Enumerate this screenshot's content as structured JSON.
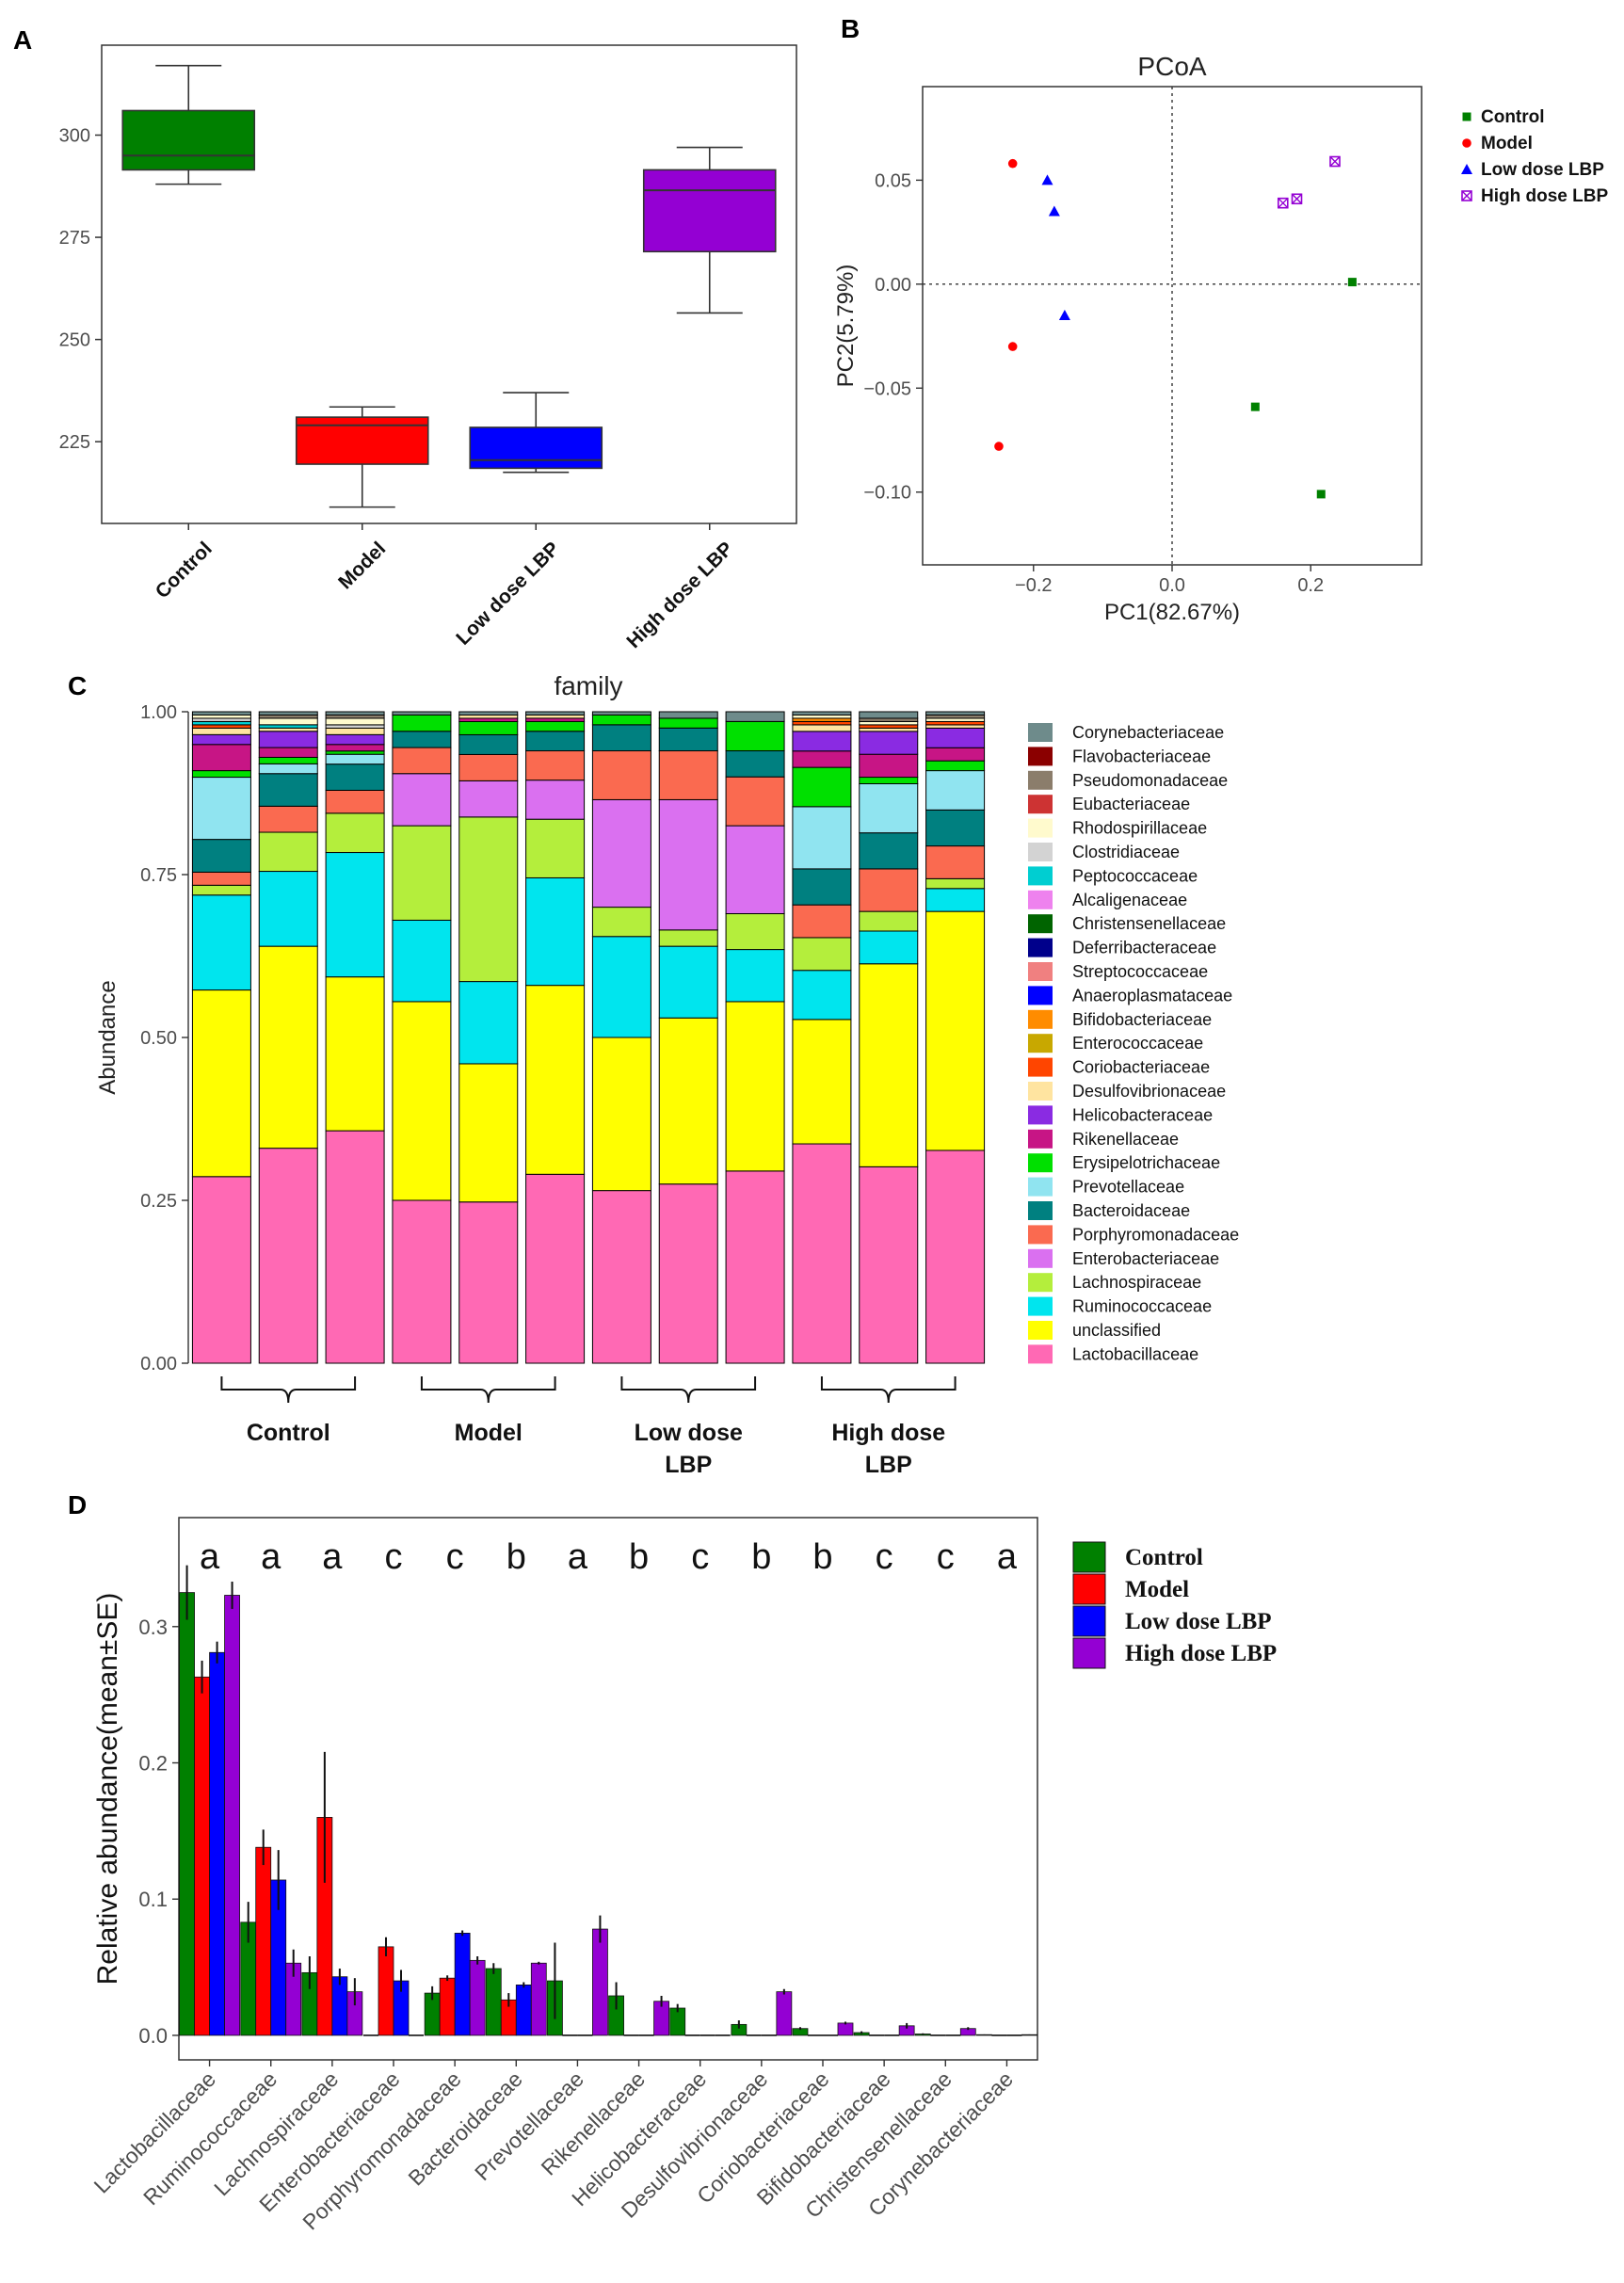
{
  "panel_labels": {
    "a": "A",
    "b": "B",
    "c": "C",
    "d": "D"
  },
  "chart_data": [
    {
      "panel": "A",
      "type": "box",
      "title": "",
      "xlabel": "",
      "ylabel": "",
      "ylim": [
        205,
        322
      ],
      "yticks": [
        225,
        250,
        275,
        300
      ],
      "groups": [
        {
          "name": "Control",
          "color": "#008000",
          "min": 288,
          "q1": 291.5,
          "median": 295,
          "q3": 306,
          "max": 317
        },
        {
          "name": "Model",
          "color": "#ff0000",
          "min": 209,
          "q1": 219.5,
          "median": 229,
          "q3": 231,
          "max": 233.5
        },
        {
          "name": "Low dose LBP",
          "color": "#0000ff",
          "min": 217.5,
          "q1": 218.5,
          "median": 220.5,
          "q3": 228.5,
          "max": 237
        },
        {
          "name": "High dose LBP",
          "color": "#9400d3",
          "min": 256.5,
          "q1": 271.5,
          "median": 286.5,
          "q3": 291.5,
          "max": 297
        }
      ]
    },
    {
      "panel": "B",
      "type": "scatter",
      "title": "PCoA",
      "xlabel": "PC1(82.67%)",
      "ylabel": "PC2(5.79%)",
      "xlim": [
        -0.36,
        0.36
      ],
      "ylim": [
        -0.135,
        0.095
      ],
      "xticks": [
        {
          "v": -0.2,
          "label": "−0.2"
        },
        {
          "v": 0.0,
          "label": "0.0"
        },
        {
          "v": 0.2,
          "label": "0.2"
        }
      ],
      "yticks": [
        {
          "v": -0.1,
          "label": "−0.10"
        },
        {
          "v": -0.05,
          "label": "−0.05"
        },
        {
          "v": 0.0,
          "label": "0.00"
        },
        {
          "v": 0.05,
          "label": "0.05"
        }
      ],
      "series": [
        {
          "name": "Control",
          "color": "#008000",
          "marker": "square",
          "points": [
            [
              0.26,
              0.001
            ],
            [
              0.12,
              -0.059
            ],
            [
              0.215,
              -0.101
            ]
          ]
        },
        {
          "name": "Model",
          "color": "#ff0000",
          "marker": "circle",
          "points": [
            [
              -0.23,
              0.058
            ],
            [
              -0.23,
              -0.03
            ],
            [
              -0.25,
              -0.078
            ]
          ]
        },
        {
          "name": "Low dose LBP",
          "color": "#0000ff",
          "marker": "triangle",
          "points": [
            [
              -0.18,
              0.05
            ],
            [
              -0.17,
              0.035
            ],
            [
              -0.155,
              -0.015
            ]
          ]
        },
        {
          "name": "High dose LBP",
          "color": "#9400d3",
          "marker": "boxx",
          "points": [
            [
              0.16,
              0.039
            ],
            [
              0.18,
              0.041
            ],
            [
              0.235,
              0.059
            ]
          ]
        }
      ]
    },
    {
      "panel": "C",
      "type": "stacked-bar",
      "title": "family",
      "xlabel": "",
      "ylabel": "Abundance",
      "ylim": [
        0,
        1
      ],
      "yticks": [
        {
          "v": 0,
          "label": "0.00"
        },
        {
          "v": 0.25,
          "label": "0.25"
        },
        {
          "v": 0.5,
          "label": "0.50"
        },
        {
          "v": 0.75,
          "label": "0.75"
        },
        {
          "v": 1,
          "label": "1.00"
        }
      ],
      "group_labels": [
        {
          "lines": [
            "Control"
          ],
          "bars": [
            0,
            2
          ]
        },
        {
          "lines": [
            "Model"
          ],
          "bars": [
            3,
            5
          ]
        },
        {
          "lines": [
            "Low dose",
            "LBP"
          ],
          "bars": [
            6,
            8
          ]
        },
        {
          "lines": [
            "High dose",
            "LBP"
          ],
          "bars": [
            9,
            11
          ]
        }
      ],
      "legend": [
        {
          "name": "Corynebacteriaceae",
          "color": "#6e8b8b"
        },
        {
          "name": "Flavobacteriaceae",
          "color": "#8b0000"
        },
        {
          "name": "Pseudomonadaceae",
          "color": "#8b7d6b"
        },
        {
          "name": "Eubacteriaceae",
          "color": "#cd3333"
        },
        {
          "name": "Rhodospirillaceae",
          "color": "#fffacd"
        },
        {
          "name": "Clostridiaceae",
          "color": "#d3d3d3"
        },
        {
          "name": "Peptococcaceae",
          "color": "#00ced1"
        },
        {
          "name": "Alcaligenaceae",
          "color": "#ee82ee"
        },
        {
          "name": "Christensenellaceae",
          "color": "#006400"
        },
        {
          "name": "Deferribacteraceae",
          "color": "#00008b"
        },
        {
          "name": "Streptococcaceae",
          "color": "#f08080"
        },
        {
          "name": "Anaeroplasmataceae",
          "color": "#0000ff"
        },
        {
          "name": "Bifidobacteriaceae",
          "color": "#ff8c00"
        },
        {
          "name": "Enterococcaceae",
          "color": "#c8a800"
        },
        {
          "name": "Coriobacteriaceae",
          "color": "#ff4500"
        },
        {
          "name": "Desulfovibrionaceae",
          "color": "#ffe4a0"
        },
        {
          "name": "Helicobacteraceae",
          "color": "#8a2be2"
        },
        {
          "name": "Rikenellaceae",
          "color": "#c71585"
        },
        {
          "name": "Erysipelotrichaceae",
          "color": "#00e000"
        },
        {
          "name": "Prevotellaceae",
          "color": "#90e4f0"
        },
        {
          "name": "Bacteroidaceae",
          "color": "#008080"
        },
        {
          "name": "Porphyromonadaceae",
          "color": "#fa6a50"
        },
        {
          "name": "Enterobacteriaceae",
          "color": "#da70f0"
        },
        {
          "name": "Lachnospiraceae",
          "color": "#b4ee3c"
        },
        {
          "name": "Ruminococcaceae",
          "color": "#00e5ee"
        },
        {
          "name": "unclassified",
          "color": "#ffff00"
        },
        {
          "name": "Lactobacillaceae",
          "color": "#ff69b4"
        }
      ],
      "stack_order": [
        "Lactobacillaceae",
        "unclassified",
        "Ruminococcaceae",
        "Lachnospiraceae",
        "Enterobacteriaceae",
        "Porphyromonadaceae",
        "Bacteroidaceae",
        "Prevotellaceae",
        "Erysipelotrichaceae",
        "Rikenellaceae",
        "Helicobacteraceae",
        "Desulfovibrionaceae",
        "Coriobacteriaceae",
        "Enterococcaceae",
        "Bifidobacteriaceae",
        "Anaeroplasmataceae",
        "Streptococcaceae",
        "Deferribacteraceae",
        "Christensenellaceae",
        "Alcaligenaceae",
        "Peptococcaceae",
        "Clostridiaceae",
        "Rhodospirillaceae",
        "Eubacteriaceae",
        "Pseudomonadaceae",
        "Flavobacteriaceae",
        "Corynebacteriaceae"
      ],
      "bars": [
        [
          0.285,
          0.285,
          0.145,
          0.015,
          0,
          0.02,
          0.05,
          0.095,
          0.01,
          0.04,
          0.015,
          0.01,
          0.005,
          0,
          0,
          0,
          0,
          0,
          0,
          0,
          0.005,
          0.005,
          0.005,
          0,
          0,
          0,
          0.005
        ],
        [
          0.33,
          0.31,
          0.115,
          0.06,
          0,
          0.04,
          0.05,
          0.015,
          0.01,
          0.015,
          0.025,
          0.005,
          0,
          0,
          0,
          0,
          0,
          0,
          0,
          0,
          0.005,
          0,
          0.01,
          0,
          0.005,
          0,
          0.005
        ],
        [
          0.355,
          0.235,
          0.19,
          0.06,
          0,
          0.035,
          0.04,
          0.015,
          0.005,
          0.01,
          0.015,
          0.01,
          0,
          0,
          0,
          0,
          0,
          0,
          0,
          0,
          0,
          0.005,
          0.01,
          0,
          0.005,
          0,
          0.005
        ],
        [
          0.25,
          0.305,
          0.125,
          0.145,
          0.08,
          0.04,
          0.025,
          0,
          0.025,
          0,
          0,
          0,
          0,
          0,
          0,
          0,
          0,
          0,
          0,
          0,
          0,
          0,
          0,
          0,
          0,
          0,
          0.005
        ],
        [
          0.245,
          0.21,
          0.125,
          0.25,
          0.055,
          0.04,
          0.03,
          0,
          0.02,
          0.005,
          0,
          0.005,
          0,
          0,
          0,
          0,
          0,
          0,
          0,
          0,
          0,
          0,
          0,
          0,
          0,
          0,
          0.005
        ],
        [
          0.29,
          0.29,
          0.165,
          0.09,
          0.06,
          0.045,
          0.03,
          0,
          0.015,
          0.005,
          0,
          0.005,
          0,
          0,
          0,
          0,
          0,
          0,
          0,
          0,
          0,
          0,
          0,
          0,
          0,
          0,
          0.005
        ],
        [
          0.265,
          0.235,
          0.155,
          0.045,
          0.165,
          0.075,
          0.04,
          0,
          0.015,
          0,
          0,
          0,
          0,
          0,
          0,
          0,
          0,
          0,
          0,
          0,
          0,
          0,
          0,
          0,
          0,
          0,
          0.005
        ],
        [
          0.275,
          0.255,
          0.11,
          0.025,
          0.2,
          0.075,
          0.035,
          0,
          0.015,
          0,
          0,
          0,
          0,
          0,
          0,
          0,
          0,
          0,
          0,
          0,
          0,
          0,
          0,
          0,
          0,
          0,
          0.01
        ],
        [
          0.295,
          0.26,
          0.08,
          0.055,
          0.135,
          0.075,
          0.04,
          0,
          0.045,
          0,
          0,
          0,
          0,
          0,
          0,
          0,
          0,
          0,
          0,
          0,
          0,
          0,
          0,
          0,
          0,
          0,
          0.015
        ],
        [
          0.335,
          0.19,
          0.075,
          0.05,
          0,
          0.05,
          0.055,
          0.095,
          0.06,
          0.025,
          0.03,
          0.01,
          0.005,
          0,
          0.005,
          0,
          0,
          0,
          0,
          0,
          0,
          0,
          0.005,
          0,
          0,
          0,
          0.005
        ],
        [
          0.3,
          0.31,
          0.05,
          0.03,
          0,
          0.065,
          0.055,
          0.075,
          0.01,
          0.035,
          0.035,
          0.005,
          0.005,
          0,
          0,
          0,
          0,
          0,
          0,
          0,
          0,
          0,
          0.005,
          0,
          0.005,
          0,
          0.01
        ],
        [
          0.325,
          0.365,
          0.035,
          0.015,
          0,
          0.05,
          0.055,
          0.06,
          0.015,
          0.02,
          0.03,
          0.005,
          0.005,
          0,
          0,
          0,
          0,
          0,
          0,
          0,
          0,
          0,
          0.005,
          0,
          0.005,
          0,
          0.005
        ]
      ]
    },
    {
      "panel": "D",
      "type": "bar",
      "title": "",
      "xlabel": "",
      "ylabel": "Relative abundance(mean±SE)",
      "ylim": [
        -0.018,
        0.38
      ],
      "yticks": [
        {
          "v": 0,
          "label": "0.0"
        },
        {
          "v": 0.1,
          "label": "0.1"
        },
        {
          "v": 0.2,
          "label": "0.2"
        },
        {
          "v": 0.3,
          "label": "0.3"
        }
      ],
      "categories": [
        "Lactobacillaceae",
        "Ruminococcaceae",
        "Lachnospiraceae",
        "Enterobacteriaceae",
        "Porphyromonadaceae",
        "Bacteroidaceae",
        "Prevotellaceae",
        "Rikenellaceae",
        "Helicobacteraceae",
        "Desulfovibrionaceae",
        "Coriobacteriaceae",
        "Bifidobacteriaceae",
        "Christensenellaceae",
        "Corynebacteriaceae"
      ],
      "significance": [
        "a",
        "a",
        "a",
        "c",
        "c",
        "b",
        "a",
        "b",
        "c",
        "b",
        "b",
        "c",
        "c",
        "a"
      ],
      "series": [
        {
          "name": "Control",
          "color": "#008000",
          "values": [
            0.325,
            0.083,
            0.046,
            0,
            0.031,
            0.049,
            0.04,
            0.029,
            0.02,
            0.008,
            0.005,
            0.002,
            0.001,
            0.0005
          ],
          "errors": [
            0.02,
            0.015,
            0.012,
            0,
            0.005,
            0.004,
            0.028,
            0.01,
            0.003,
            0.003,
            0.001,
            0.001,
            0.0005,
            0.0002
          ]
        },
        {
          "name": "Model",
          "color": "#ff0000",
          "values": [
            0.263,
            0.138,
            0.16,
            0.065,
            0.042,
            0.026,
            0,
            0,
            0,
            0,
            0,
            0,
            0,
            0
          ],
          "errors": [
            0.012,
            0.013,
            0.048,
            0.007,
            0.002,
            0.005,
            0,
            0,
            0,
            0,
            0,
            0,
            0,
            0
          ]
        },
        {
          "name": "Low dose LBP",
          "color": "#0000ff",
          "values": [
            0.281,
            0.114,
            0.043,
            0.04,
            0.075,
            0.037,
            0,
            0,
            0,
            0,
            0,
            0,
            0,
            0
          ],
          "errors": [
            0.008,
            0.022,
            0.006,
            0.008,
            0.002,
            0.002,
            0,
            0,
            0,
            0,
            0,
            0,
            0,
            0
          ]
        },
        {
          "name": "High dose LBP",
          "color": "#9400d3",
          "values": [
            0.323,
            0.053,
            0.032,
            0,
            0.055,
            0.053,
            0.078,
            0.025,
            0,
            0.032,
            0.009,
            0.007,
            0.005,
            0.0005
          ],
          "errors": [
            0.01,
            0.01,
            0.01,
            0,
            0.003,
            0.001,
            0.01,
            0.004,
            0,
            0.002,
            0.001,
            0.002,
            0.001,
            0.0002
          ]
        }
      ]
    }
  ]
}
